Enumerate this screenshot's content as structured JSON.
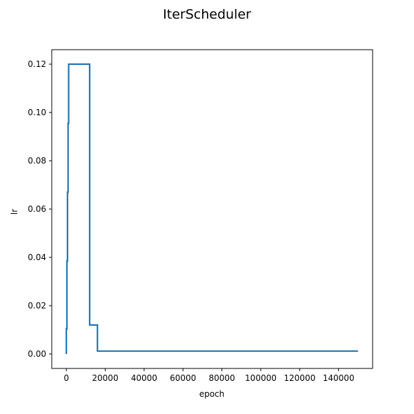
{
  "chart_data": {
    "type": "line",
    "title": "IterScheduler",
    "xlabel": "epoch",
    "ylabel": "lr",
    "xlim": [
      -7500,
      157500
    ],
    "ylim": [
      -0.006,
      0.126
    ],
    "xticks": [
      0,
      20000,
      40000,
      60000,
      80000,
      100000,
      120000,
      140000
    ],
    "xtick_labels": [
      "0",
      "20000",
      "40000",
      "60000",
      "80000",
      "100000",
      "120000",
      "140000"
    ],
    "yticks": [
      0.0,
      0.02,
      0.04,
      0.06,
      0.08,
      0.1,
      0.12
    ],
    "ytick_labels": [
      "0.00",
      "0.02",
      "0.04",
      "0.06",
      "0.08",
      "0.10",
      "0.12"
    ],
    "grid": false,
    "legend": "none",
    "series": [
      {
        "color": "#1f77b4",
        "x": [
          0,
          0,
          300,
          300,
          600,
          600,
          900,
          900,
          1200,
          1200,
          1500,
          1500,
          12000,
          12000,
          16000,
          16000,
          150000
        ],
        "y": [
          0.0,
          0.0105,
          0.0105,
          0.0385,
          0.0385,
          0.067,
          0.067,
          0.0955,
          0.0955,
          0.12,
          0.12,
          0.12,
          0.12,
          0.012,
          0.012,
          0.0012,
          0.0012
        ]
      }
    ]
  }
}
